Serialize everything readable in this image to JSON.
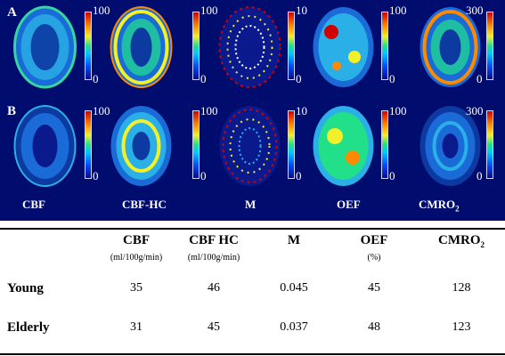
{
  "rows": [
    {
      "label": "A",
      "panels": [
        {
          "scale_max": "100",
          "scale_min": "0"
        },
        {
          "scale_max": "100",
          "scale_min": "0"
        },
        {
          "scale_max": "10",
          "scale_min": "0"
        },
        {
          "scale_max": "100",
          "scale_min": "0"
        },
        {
          "scale_max": "300",
          "scale_min": "0"
        }
      ]
    },
    {
      "label": "B",
      "panels": [
        {
          "scale_max": "100",
          "scale_min": "0"
        },
        {
          "scale_max": "100",
          "scale_min": "0"
        },
        {
          "scale_max": "10",
          "scale_min": "0"
        },
        {
          "scale_max": "100",
          "scale_min": "0"
        },
        {
          "scale_max": "300",
          "scale_min": "0"
        }
      ]
    }
  ],
  "captions": {
    "cbf": "CBF",
    "cbf_hc": "CBF-HC",
    "m": "M",
    "oef": "OEF",
    "cmro2_base": "CMRO",
    "cmro2_sub": "2"
  },
  "colormap": [
    "#0a0a8c",
    "#0050ff",
    "#00c8ff",
    "#22e08a",
    "#f2f02a",
    "#ff8a00",
    "#d10000"
  ],
  "table": {
    "headers": [
      {
        "name": "CBF",
        "unit": "(ml/100g/min)"
      },
      {
        "name": "CBF HC",
        "unit": "(ml/100g/min)"
      },
      {
        "name": "M",
        "unit": ""
      },
      {
        "name": "OEF",
        "unit": "(%)"
      },
      {
        "name": "CMRO",
        "sub": "2",
        "unit": ""
      }
    ],
    "rows": [
      {
        "label": "Young",
        "values": [
          "35",
          "46",
          "0.045",
          "45",
          "128"
        ]
      },
      {
        "label": "Elderly",
        "values": [
          "31",
          "45",
          "0.037",
          "48",
          "123"
        ]
      }
    ]
  }
}
